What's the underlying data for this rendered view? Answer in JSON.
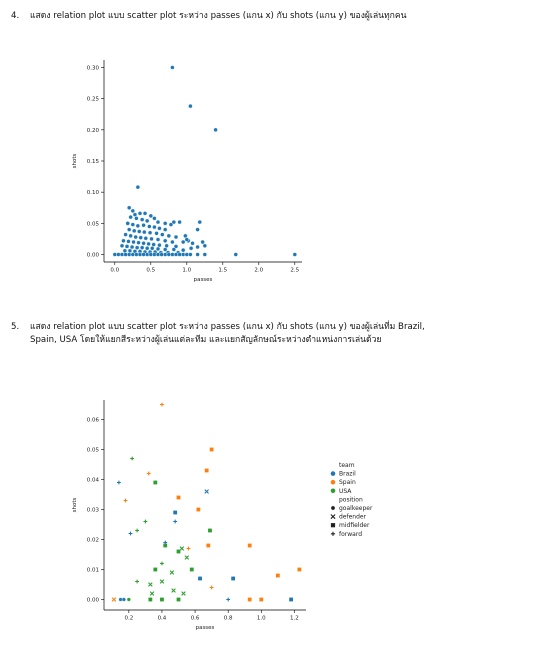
{
  "questions": [
    {
      "number": "4.",
      "text": "แสดง relation plot แบบ scatter plot ระหว่าง passes (แกน x) กับ shots (แกน y) ของผู้เล่นทุกคน"
    },
    {
      "number": "5.",
      "line1": "แสดง relation plot แบบ scatter plot ระหว่าง passes (แกน x) กับ shots (แกน y) ของผู้เล่นที่ม Brazil,",
      "line2": "Spain, USA โดยให้แยกสีระหว่างผู้เล่นแต่ละทีม และแยกสัญลักษณ์ระหว่างตำแหน่งการเล่นด้วย"
    }
  ],
  "chart_data": [
    {
      "type": "scatter",
      "xlabel": "passes",
      "ylabel": "shots",
      "xlim": [
        -0.15,
        2.6
      ],
      "ylim": [
        -0.012,
        0.312
      ],
      "xticks": [
        "0.0",
        "0.5",
        "1.0",
        "1.5",
        "2.0",
        "2.5"
      ],
      "yticks": [
        "0.00",
        "0.05",
        "0.10",
        "0.15",
        "0.20",
        "0.25",
        "0.30"
      ],
      "color": "#1f77b4",
      "points": [
        [
          0.8,
          0.3
        ],
        [
          1.05,
          0.238
        ],
        [
          1.4,
          0.2
        ],
        [
          0.32,
          0.108
        ],
        [
          2.5,
          0.0
        ],
        [
          1.68,
          0.0
        ],
        [
          0.2,
          0.075
        ],
        [
          0.25,
          0.07
        ],
        [
          0.28,
          0.064
        ],
        [
          0.35,
          0.066
        ],
        [
          0.42,
          0.066
        ],
        [
          0.5,
          0.062
        ],
        [
          0.55,
          0.058
        ],
        [
          0.22,
          0.06
        ],
        [
          0.3,
          0.058
        ],
        [
          0.38,
          0.056
        ],
        [
          0.45,
          0.054
        ],
        [
          0.6,
          0.052
        ],
        [
          0.7,
          0.05
        ],
        [
          0.78,
          0.048
        ],
        [
          0.82,
          0.052
        ],
        [
          0.9,
          0.052
        ],
        [
          0.18,
          0.05
        ],
        [
          0.25,
          0.048
        ],
        [
          0.32,
          0.046
        ],
        [
          0.4,
          0.047
        ],
        [
          0.48,
          0.045
        ],
        [
          0.55,
          0.044
        ],
        [
          0.62,
          0.042
        ],
        [
          0.7,
          0.04
        ],
        [
          0.2,
          0.04
        ],
        [
          0.27,
          0.038
        ],
        [
          0.34,
          0.037
        ],
        [
          0.41,
          0.036
        ],
        [
          0.49,
          0.035
        ],
        [
          0.58,
          0.034
        ],
        [
          0.66,
          0.032
        ],
        [
          0.75,
          0.03
        ],
        [
          0.85,
          0.028
        ],
        [
          0.15,
          0.032
        ],
        [
          0.22,
          0.03
        ],
        [
          0.29,
          0.028
        ],
        [
          0.36,
          0.027
        ],
        [
          0.43,
          0.026
        ],
        [
          0.51,
          0.025
        ],
        [
          0.6,
          0.024
        ],
        [
          0.7,
          0.022
        ],
        [
          0.8,
          0.02
        ],
        [
          0.95,
          0.02
        ],
        [
          0.12,
          0.022
        ],
        [
          0.19,
          0.021
        ],
        [
          0.26,
          0.02
        ],
        [
          0.33,
          0.019
        ],
        [
          0.4,
          0.018
        ],
        [
          0.47,
          0.017
        ],
        [
          0.54,
          0.016
        ],
        [
          0.62,
          0.015
        ],
        [
          0.72,
          0.014
        ],
        [
          0.85,
          0.013
        ],
        [
          0.1,
          0.014
        ],
        [
          0.17,
          0.013
        ],
        [
          0.24,
          0.012
        ],
        [
          0.31,
          0.011
        ],
        [
          0.38,
          0.011
        ],
        [
          0.45,
          0.01
        ],
        [
          0.52,
          0.01
        ],
        [
          0.6,
          0.009
        ],
        [
          0.7,
          0.008
        ],
        [
          0.82,
          0.008
        ],
        [
          0.95,
          0.007
        ],
        [
          0.14,
          0.006
        ],
        [
          0.21,
          0.006
        ],
        [
          0.28,
          0.005
        ],
        [
          0.35,
          0.005
        ],
        [
          0.42,
          0.004
        ],
        [
          0.49,
          0.004
        ],
        [
          0.56,
          0.004
        ],
        [
          0.64,
          0.003
        ],
        [
          0.74,
          0.003
        ],
        [
          0.88,
          0.003
        ],
        [
          0.0,
          0.0
        ],
        [
          0.05,
          0.0
        ],
        [
          0.1,
          0.0
        ],
        [
          0.15,
          0.0
        ],
        [
          0.2,
          0.0
        ],
        [
          0.25,
          0.0
        ],
        [
          0.3,
          0.0
        ],
        [
          0.35,
          0.0
        ],
        [
          0.4,
          0.0
        ],
        [
          0.45,
          0.0
        ],
        [
          0.5,
          0.0
        ],
        [
          0.55,
          0.0
        ],
        [
          0.6,
          0.0
        ],
        [
          0.65,
          0.0
        ],
        [
          0.7,
          0.0
        ],
        [
          0.75,
          0.0
        ],
        [
          0.8,
          0.0
        ],
        [
          0.85,
          0.0
        ],
        [
          0.9,
          0.0
        ],
        [
          0.95,
          0.0
        ],
        [
          1.0,
          0.0
        ],
        [
          1.05,
          0.0
        ],
        [
          1.15,
          0.0
        ],
        [
          1.25,
          0.0
        ],
        [
          1.02,
          0.022
        ],
        [
          1.08,
          0.018
        ],
        [
          1.15,
          0.012
        ],
        [
          1.22,
          0.02
        ],
        [
          1.25,
          0.014
        ],
        [
          1.18,
          0.052
        ],
        [
          1.15,
          0.04
        ],
        [
          1.0,
          0.024
        ],
        [
          0.98,
          0.03
        ],
        [
          1.06,
          0.01
        ]
      ]
    },
    {
      "type": "scatter",
      "xlabel": "passes",
      "ylabel": "shots",
      "xlim": [
        0.05,
        1.27
      ],
      "ylim": [
        -0.0035,
        0.0665
      ],
      "xticks": [
        "0.2",
        "0.4",
        "0.6",
        "0.8",
        "1.0",
        "1.2"
      ],
      "yticks": [
        "0.00",
        "0.01",
        "0.02",
        "0.03",
        "0.04",
        "0.05",
        "0.06"
      ],
      "legend": {
        "placement": "right",
        "team_title": "team",
        "teams": [
          {
            "label": "Brazil",
            "color": "#1f77b4"
          },
          {
            "label": "Spain",
            "color": "#ff7f0e"
          },
          {
            "label": "USA",
            "color": "#2ca02c"
          }
        ],
        "position_title": "position",
        "positions": [
          {
            "label": "goalkeeper",
            "marker": "circle"
          },
          {
            "label": "defender",
            "marker": "x"
          },
          {
            "label": "midfielder",
            "marker": "square"
          },
          {
            "label": "forward",
            "marker": "plus"
          }
        ]
      },
      "points": [
        {
          "team": "Spain",
          "position": "forward",
          "x": 0.4,
          "y": 0.065
        },
        {
          "team": "USA",
          "position": "forward",
          "x": 0.22,
          "y": 0.047
        },
        {
          "team": "Spain",
          "position": "midfielder",
          "x": 0.7,
          "y": 0.05
        },
        {
          "team": "Spain",
          "position": "forward",
          "x": 0.32,
          "y": 0.042
        },
        {
          "team": "USA",
          "position": "midfielder",
          "x": 0.36,
          "y": 0.039
        },
        {
          "team": "Brazil",
          "position": "forward",
          "x": 0.14,
          "y": 0.039
        },
        {
          "team": "Spain",
          "position": "midfielder",
          "x": 0.67,
          "y": 0.043
        },
        {
          "team": "Spain",
          "position": "midfielder",
          "x": 0.5,
          "y": 0.034
        },
        {
          "team": "Brazil",
          "position": "defender",
          "x": 0.67,
          "y": 0.036
        },
        {
          "team": "Spain",
          "position": "forward",
          "x": 0.18,
          "y": 0.033
        },
        {
          "team": "Brazil",
          "position": "midfielder",
          "x": 0.48,
          "y": 0.029
        },
        {
          "team": "Spain",
          "position": "midfielder",
          "x": 0.62,
          "y": 0.03
        },
        {
          "team": "USA",
          "position": "forward",
          "x": 0.3,
          "y": 0.026
        },
        {
          "team": "Brazil",
          "position": "forward",
          "x": 0.48,
          "y": 0.026
        },
        {
          "team": "USA",
          "position": "midfielder",
          "x": 0.69,
          "y": 0.023
        },
        {
          "team": "USA",
          "position": "forward",
          "x": 0.25,
          "y": 0.023
        },
        {
          "team": "Brazil",
          "position": "forward",
          "x": 0.21,
          "y": 0.022
        },
        {
          "team": "Spain",
          "position": "midfielder",
          "x": 0.68,
          "y": 0.018
        },
        {
          "team": "Spain",
          "position": "midfielder",
          "x": 0.93,
          "y": 0.018
        },
        {
          "team": "USA",
          "position": "midfielder",
          "x": 0.42,
          "y": 0.018
        },
        {
          "team": "Brazil",
          "position": "forward",
          "x": 0.42,
          "y": 0.019
        },
        {
          "team": "USA",
          "position": "defender",
          "x": 0.52,
          "y": 0.017
        },
        {
          "team": "USA",
          "position": "midfielder",
          "x": 0.5,
          "y": 0.016
        },
        {
          "team": "Spain",
          "position": "forward",
          "x": 0.56,
          "y": 0.017
        },
        {
          "team": "USA",
          "position": "defender",
          "x": 0.55,
          "y": 0.014
        },
        {
          "team": "USA",
          "position": "forward",
          "x": 0.4,
          "y": 0.012
        },
        {
          "team": "Spain",
          "position": "midfielder",
          "x": 1.23,
          "y": 0.01
        },
        {
          "team": "USA",
          "position": "midfielder",
          "x": 0.58,
          "y": 0.01
        },
        {
          "team": "USA",
          "position": "midfielder",
          "x": 0.36,
          "y": 0.01
        },
        {
          "team": "USA",
          "position": "defender",
          "x": 0.46,
          "y": 0.009
        },
        {
          "team": "Spain",
          "position": "midfielder",
          "x": 1.1,
          "y": 0.008
        },
        {
          "team": "Brazil",
          "position": "midfielder",
          "x": 0.63,
          "y": 0.007
        },
        {
          "team": "Brazil",
          "position": "midfielder",
          "x": 0.83,
          "y": 0.007
        },
        {
          "team": "USA",
          "position": "defender",
          "x": 0.4,
          "y": 0.006
        },
        {
          "team": "USA",
          "position": "forward",
          "x": 0.25,
          "y": 0.006
        },
        {
          "team": "USA",
          "position": "defender",
          "x": 0.33,
          "y": 0.005
        },
        {
          "team": "Spain",
          "position": "forward",
          "x": 0.7,
          "y": 0.004
        },
        {
          "team": "USA",
          "position": "defender",
          "x": 0.47,
          "y": 0.003
        },
        {
          "team": "USA",
          "position": "defender",
          "x": 0.34,
          "y": 0.002
        },
        {
          "team": "USA",
          "position": "defender",
          "x": 0.53,
          "y": 0.002
        },
        {
          "team": "Spain",
          "position": "defender",
          "x": 0.11,
          "y": 0.0
        },
        {
          "team": "Brazil",
          "position": "goalkeeper",
          "x": 0.15,
          "y": 0.0
        },
        {
          "team": "Brazil",
          "position": "goalkeeper",
          "x": 0.17,
          "y": 0.0
        },
        {
          "team": "USA",
          "position": "goalkeeper",
          "x": 0.2,
          "y": 0.0
        },
        {
          "team": "USA",
          "position": "midfielder",
          "x": 0.33,
          "y": 0.0
        },
        {
          "team": "USA",
          "position": "midfielder",
          "x": 0.4,
          "y": 0.0
        },
        {
          "team": "USA",
          "position": "midfielder",
          "x": 0.5,
          "y": 0.0
        },
        {
          "team": "Brazil",
          "position": "forward",
          "x": 0.8,
          "y": 0.0
        },
        {
          "team": "Spain",
          "position": "midfielder",
          "x": 0.93,
          "y": 0.0
        },
        {
          "team": "Spain",
          "position": "midfielder",
          "x": 1.0,
          "y": 0.0
        },
        {
          "team": "Brazil",
          "position": "midfielder",
          "x": 1.18,
          "y": 0.0
        }
      ]
    }
  ]
}
